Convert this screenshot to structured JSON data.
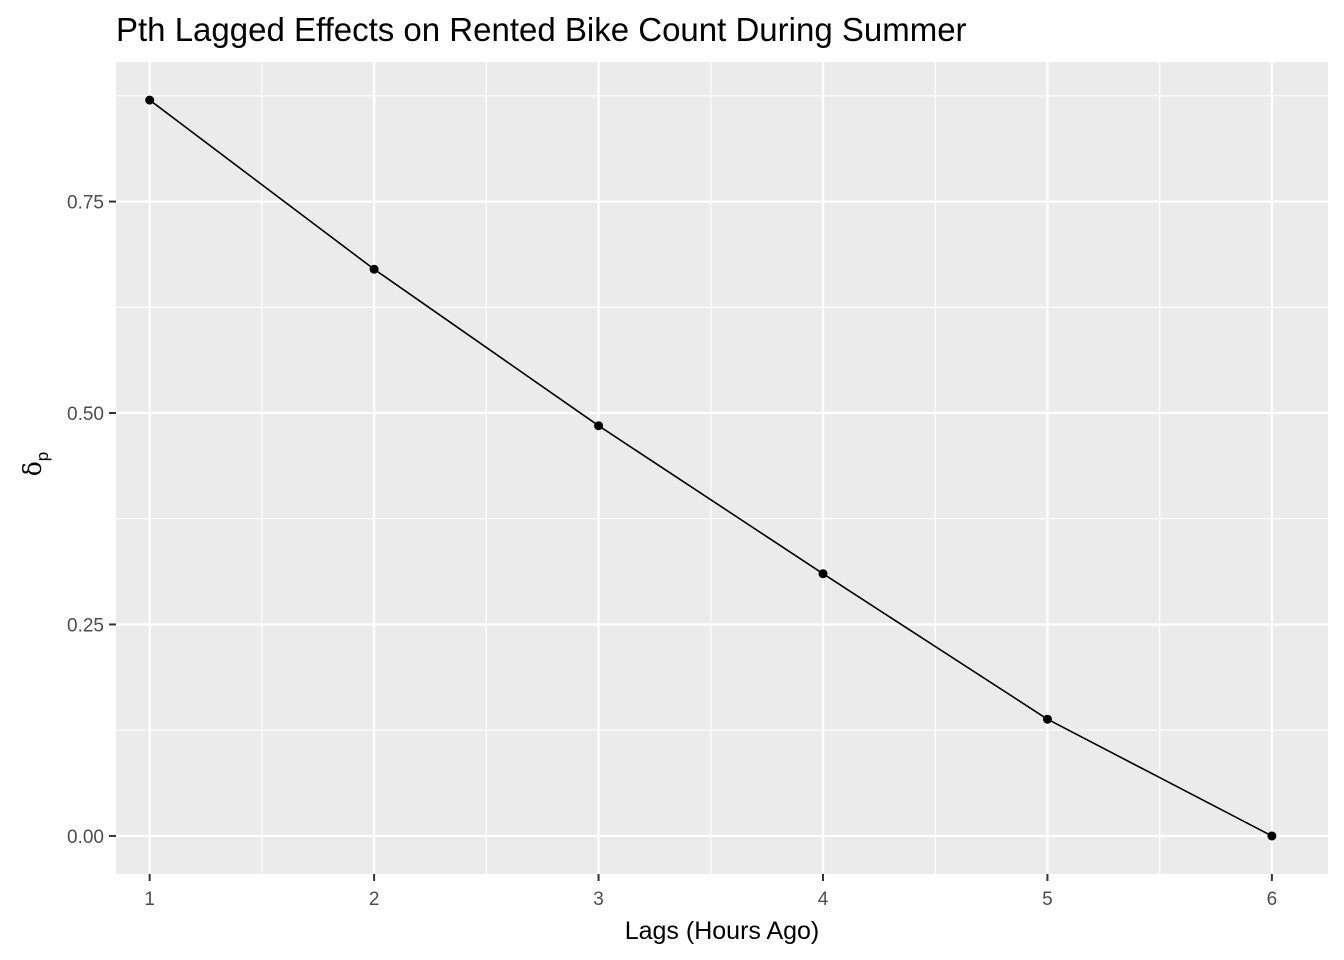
{
  "chart_data": {
    "type": "line",
    "title": "Pth Lagged Effects on Rented Bike Count During Summer",
    "xlabel": "Lags (Hours Ago)",
    "ylabel": {
      "symbol": "δ",
      "subscript": "p"
    },
    "x": [
      1,
      2,
      3,
      4,
      5,
      6
    ],
    "y": [
      0.87,
      0.67,
      0.485,
      0.31,
      0.138,
      0.0
    ],
    "xlim": [
      0.85,
      6.25
    ],
    "ylim": [
      -0.045,
      0.915
    ],
    "x_ticks": [
      1,
      2,
      3,
      4,
      5,
      6
    ],
    "x_tick_labels": [
      "1",
      "2",
      "3",
      "4",
      "5",
      "6"
    ],
    "y_ticks": [
      0,
      0.25,
      0.5,
      0.75
    ],
    "y_tick_labels": [
      "0.00",
      "0.25",
      "0.50",
      "0.75"
    ],
    "grid": true,
    "colors": {
      "panel": "#ebebeb",
      "grid": "#ffffff",
      "line": "#000000",
      "point": "#000000",
      "tick_text": "#4d4d4d",
      "tick_mark": "#333333"
    }
  }
}
